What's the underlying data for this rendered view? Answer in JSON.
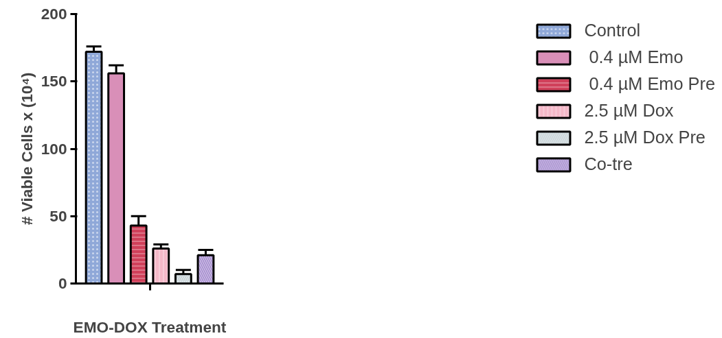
{
  "chart_data": {
    "type": "bar",
    "xlabel": "EMO-DOX Treatment",
    "ylabel": "# Viable Cells x (10⁴)",
    "categories": [
      null
    ],
    "ylim": [
      0,
      200
    ],
    "yticks": [
      0,
      50,
      100,
      150,
      200
    ],
    "grid": false,
    "legend": "right",
    "series": [
      {
        "name": "Control",
        "color": "#8fa8d8",
        "values": [
          172
        ],
        "errors": [
          [
            172,
            176
          ]
        ]
      },
      {
        "name": " 0.4 µM Emo",
        "color": "#d98fb8",
        "values": [
          156
        ],
        "errors": [
          [
            156,
            162
          ]
        ]
      },
      {
        "name": " 0.4 µM Emo Pre",
        "color": "#d0405a",
        "values": [
          43
        ],
        "errors": [
          [
            43,
            50
          ]
        ]
      },
      {
        "name": "2.5 µM Dox",
        "color": "#f4b8c8",
        "values": [
          26
        ],
        "errors": [
          [
            26,
            29
          ]
        ]
      },
      {
        "name": "2.5 µM Dox Pre",
        "color": "#c8d4d8",
        "values": [
          7
        ],
        "errors": [
          [
            7,
            10
          ]
        ]
      },
      {
        "name": "Co-tre",
        "color": "#a890d0",
        "values": [
          21
        ],
        "errors": [
          [
            21,
            25
          ]
        ]
      }
    ]
  }
}
